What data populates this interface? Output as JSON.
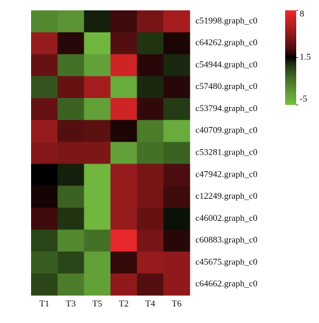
{
  "chart_data": {
    "type": "heatmap",
    "x": [
      "T1",
      "T3",
      "T5",
      "T2",
      "T4",
      "T6"
    ],
    "y": [
      "c51998.graph_c0",
      "c64262.graph_c0",
      "c54944.graph_c0",
      "c57480.graph_c0",
      "c53794.graph_c0",
      "c40709.graph_c0",
      "c53281.graph_c0",
      "c47942.graph_c0",
      "c12249.graph_c0",
      "c46002.graph_c0",
      "c60883.graph_c0",
      "c45675.graph_c0",
      "c64662.graph_c0"
    ],
    "values": [
      [
        -2.5,
        -3,
        1,
        2.5,
        4,
        5.5
      ],
      [
        5,
        2,
        -4.5,
        3,
        0.5,
        1.8
      ],
      [
        3.5,
        -1.5,
        -3.5,
        7,
        2,
        0.8
      ],
      [
        -0.5,
        3.5,
        5.5,
        -4,
        0.8,
        2
      ],
      [
        3.5,
        -1,
        -3.5,
        7,
        2.2,
        0.3
      ],
      [
        5,
        3,
        3.2,
        1.8,
        -2,
        -4
      ],
      [
        4.5,
        4.2,
        4.2,
        -3.5,
        -1.5,
        -1
      ],
      [
        1.5,
        1,
        -4.5,
        5,
        4,
        2.8
      ],
      [
        1.7,
        -1,
        -4.5,
        5,
        4,
        2.5
      ],
      [
        2.5,
        0.5,
        -4.5,
        5,
        3.5,
        1.3
      ],
      [
        0,
        -2.5,
        -1.5,
        8,
        4,
        2
      ],
      [
        -0.8,
        0,
        -3.5,
        2.3,
        5,
        4.8
      ],
      [
        0,
        -2,
        -3.5,
        4.8,
        3,
        4.8
      ]
    ],
    "clim": [
      -5,
      8
    ],
    "colorscale": [
      "#76c043",
      "#000000",
      "#e8292b"
    ],
    "colorbar_ticks": [
      8,
      1.5,
      -5
    ]
  }
}
